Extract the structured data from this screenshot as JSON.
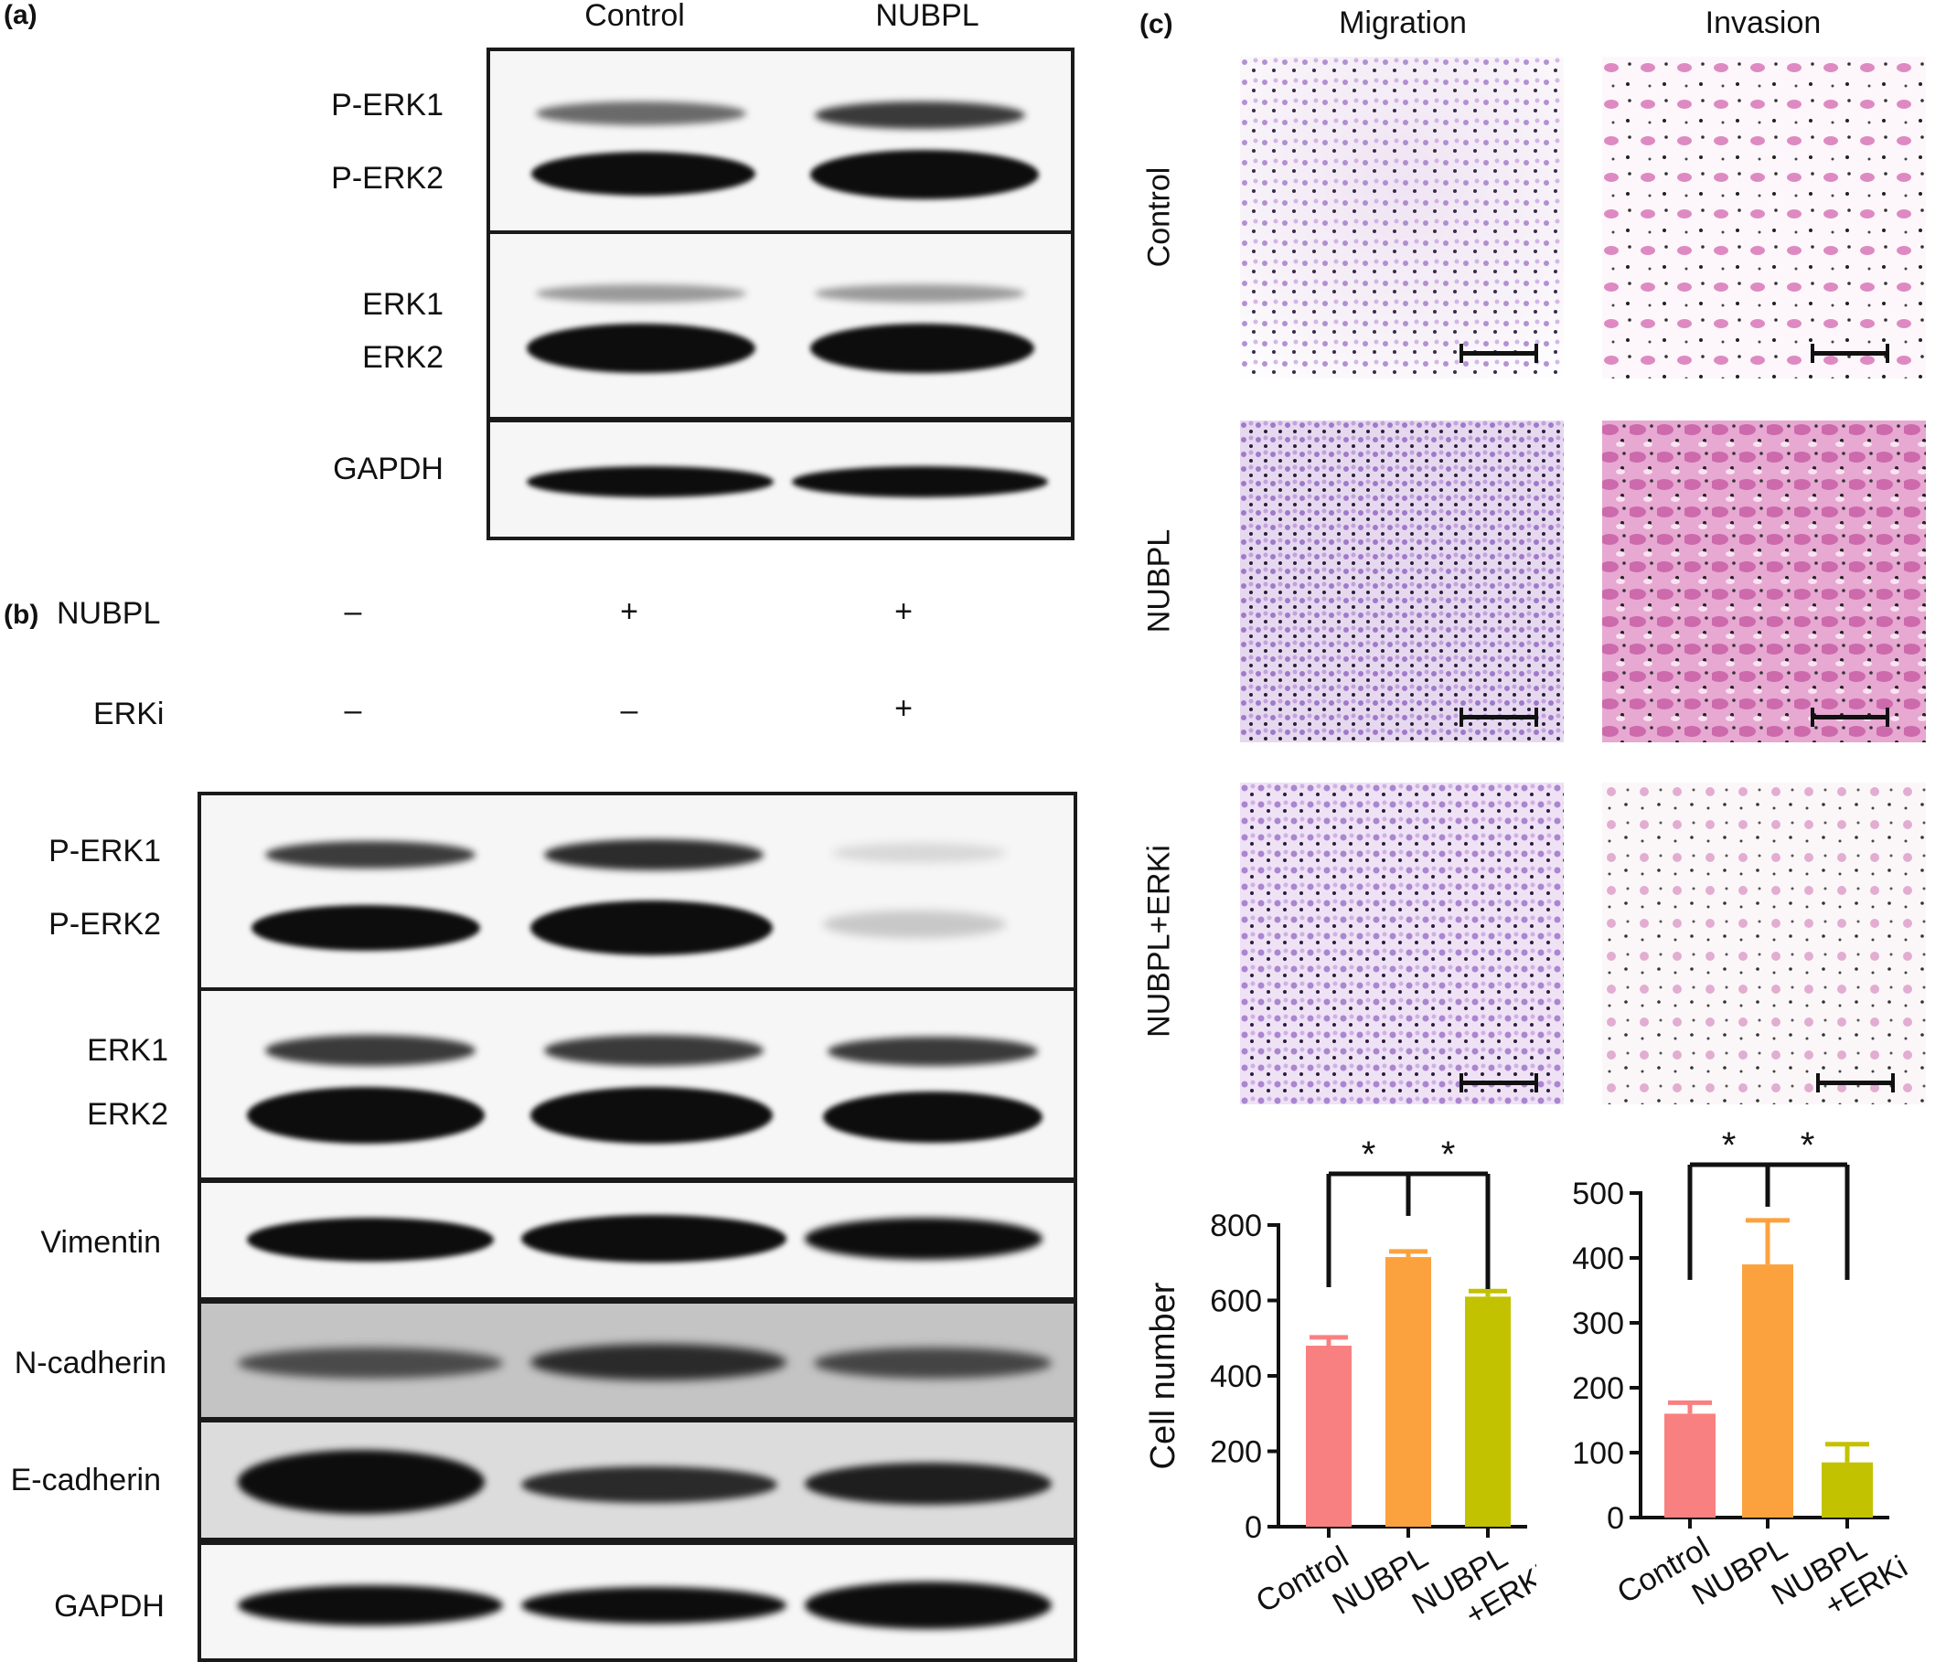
{
  "panel_a": {
    "label": "(a)",
    "lanes": [
      "Control",
      "NUBPL"
    ],
    "rows": [
      {
        "labels": [
          "P-ERK1",
          "P-ERK2"
        ]
      },
      {
        "labels": [
          "ERK1",
          "ERK2"
        ]
      },
      {
        "labels": [
          "GAPDH"
        ]
      }
    ]
  },
  "panel_b": {
    "label": "(b)",
    "conditions": [
      {
        "name": "NUBPL",
        "signs": [
          "–",
          "+",
          "+"
        ]
      },
      {
        "name": "ERKi",
        "signs": [
          "–",
          "–",
          "+"
        ]
      }
    ],
    "rows": [
      {
        "labels": [
          "P-ERK1",
          "P-ERK2"
        ]
      },
      {
        "labels": [
          "ERK1",
          "ERK2"
        ]
      },
      {
        "labels": [
          "Vimentin"
        ]
      },
      {
        "labels": [
          "N-cadherin"
        ]
      },
      {
        "labels": [
          "E-cadherin"
        ]
      },
      {
        "labels": [
          "GAPDH"
        ]
      }
    ]
  },
  "panel_c": {
    "label": "(c)",
    "columns": [
      "Migration",
      "Invasion"
    ],
    "rows": [
      "Control",
      "NUBPL",
      "NUBPL+ERKi"
    ]
  },
  "chart_data": [
    {
      "type": "bar",
      "categories": [
        "Control",
        "NUBPL",
        "NUBPL +ERKi"
      ],
      "values": [
        480,
        715,
        610
      ],
      "errors": [
        22,
        15,
        15
      ],
      "ylabel": "Cell number",
      "ylim": [
        0,
        800
      ],
      "yticks": [
        "0",
        "200",
        "400",
        "600",
        "800"
      ],
      "colors": [
        "#f98080",
        "#fba23e",
        "#c3c200"
      ],
      "significance": [
        "*",
        "*"
      ]
    },
    {
      "type": "bar",
      "categories": [
        "Control",
        "NUBPL",
        "NUBPL +ERKi"
      ],
      "values": [
        160,
        390,
        85
      ],
      "errors": [
        17,
        68,
        28
      ],
      "ylabel": "",
      "ylim": [
        0,
        500
      ],
      "yticks": [
        "0",
        "100",
        "200",
        "300",
        "400",
        "500"
      ],
      "colors": [
        "#f98080",
        "#fba23e",
        "#c3c200"
      ],
      "significance": [
        "*",
        "*"
      ]
    }
  ]
}
